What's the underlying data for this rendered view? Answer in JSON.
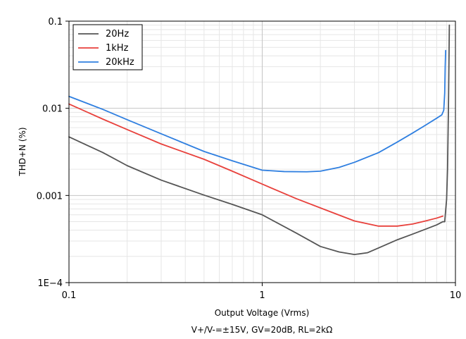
{
  "chart_data": {
    "type": "line",
    "xlabel": "Output Voltage (Vrms)",
    "caption": "V+/V-=±15V, GV=20dB, RL=2kΩ",
    "ylabel": "THD+N (%)",
    "x_scale": "log",
    "y_scale": "log",
    "xlim": [
      0.1,
      10
    ],
    "ylim": [
      0.0001,
      0.1
    ],
    "x_ticks": [
      0.1,
      1,
      10
    ],
    "x_tick_labels": [
      "0.1",
      "1",
      "10"
    ],
    "y_ticks": [
      0.0001,
      0.001,
      0.01,
      0.1
    ],
    "y_tick_labels": [
      "1E−4",
      "0.001",
      "0.01",
      "0.1"
    ],
    "grid": true,
    "legend_position": "top-left",
    "series": [
      {
        "name": "20Hz",
        "color": "#555555",
        "x": [
          0.1,
          0.15,
          0.2,
          0.3,
          0.5,
          0.7,
          1.0,
          1.5,
          2.0,
          2.5,
          3.0,
          3.5,
          4.0,
          5.0,
          6.0,
          7.0,
          8.0,
          8.6,
          8.8,
          9.0,
          9.1,
          9.2,
          9.3
        ],
        "y": [
          0.0047,
          0.0031,
          0.0022,
          0.0015,
          0.00101,
          0.00079,
          0.0006,
          0.00037,
          0.00026,
          0.000225,
          0.00021,
          0.00022,
          0.00025,
          0.00031,
          0.00036,
          0.00041,
          0.00046,
          0.0005,
          0.0005,
          0.0009,
          0.002,
          0.01,
          0.09
        ]
      },
      {
        "name": "1kHz",
        "color": "#e8413c",
        "x": [
          0.1,
          0.15,
          0.2,
          0.3,
          0.5,
          0.7,
          1.0,
          1.5,
          2.0,
          3.0,
          4.0,
          5.0,
          6.0,
          7.0,
          8.0,
          8.6
        ],
        "y": [
          0.0112,
          0.0075,
          0.0057,
          0.0039,
          0.0026,
          0.0019,
          0.00135,
          0.00092,
          0.00072,
          0.00051,
          0.000445,
          0.000445,
          0.00047,
          0.00051,
          0.00055,
          0.00058
        ]
      },
      {
        "name": "20kHz",
        "color": "#2f7fe0",
        "x": [
          0.1,
          0.15,
          0.2,
          0.3,
          0.5,
          0.7,
          1.0,
          1.3,
          1.7,
          2.0,
          2.5,
          3.0,
          4.0,
          5.0,
          6.0,
          7.0,
          8.0,
          8.5,
          8.7,
          8.8,
          8.85,
          8.9
        ],
        "y": [
          0.0137,
          0.0097,
          0.0074,
          0.0051,
          0.0032,
          0.0025,
          0.00195,
          0.00188,
          0.00187,
          0.0019,
          0.0021,
          0.0024,
          0.0031,
          0.0041,
          0.0052,
          0.0064,
          0.0077,
          0.0084,
          0.0095,
          0.015,
          0.03,
          0.046
        ]
      }
    ]
  }
}
